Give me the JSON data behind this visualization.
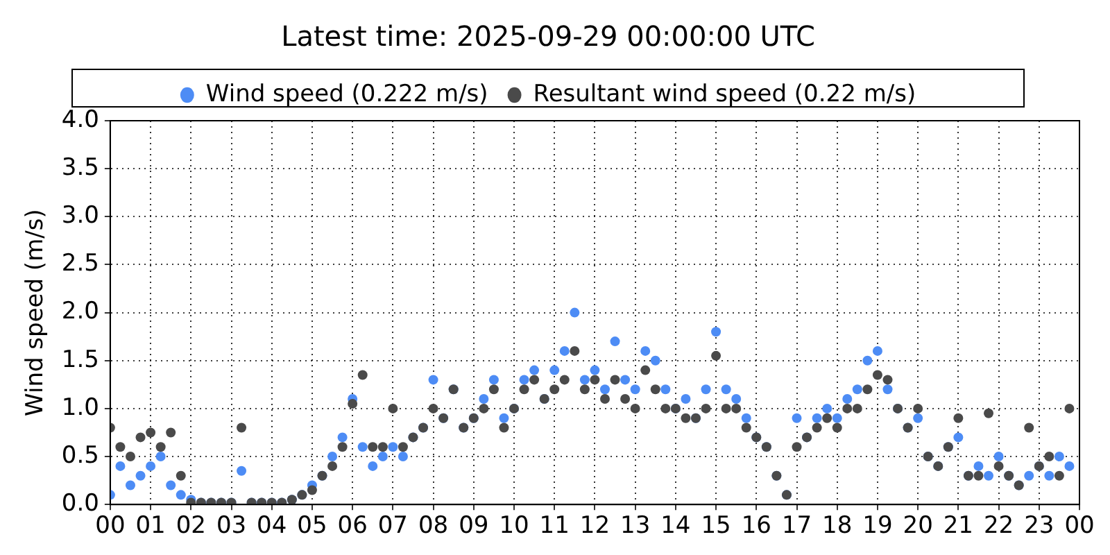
{
  "chart_data": {
    "type": "scatter",
    "title": "Latest time: 2025-09-29 00:00:00 UTC",
    "ylabel": "Wind speed (m/s)",
    "x": [
      0,
      0.25,
      0.5,
      0.75,
      1,
      1.25,
      1.5,
      1.75,
      2,
      2.25,
      2.5,
      2.75,
      3,
      3.25,
      3.5,
      3.75,
      4,
      4.25,
      4.5,
      4.75,
      5,
      5.25,
      5.5,
      5.75,
      6,
      6.25,
      6.5,
      6.75,
      7,
      7.25,
      7.5,
      7.75,
      8,
      8.25,
      8.5,
      8.75,
      9,
      9.25,
      9.5,
      9.75,
      10,
      10.25,
      10.5,
      10.75,
      11,
      11.25,
      11.5,
      11.75,
      12,
      12.25,
      12.5,
      12.75,
      13,
      13.25,
      13.5,
      13.75,
      14,
      14.25,
      14.5,
      14.75,
      15,
      15.25,
      15.5,
      15.75,
      16,
      16.25,
      16.5,
      16.75,
      17,
      17.25,
      17.5,
      17.75,
      18,
      18.25,
      18.5,
      18.75,
      19,
      19.25,
      19.5,
      19.75,
      20,
      20.25,
      20.5,
      20.75,
      21,
      21.25,
      21.5,
      21.75,
      22,
      22.25,
      22.5,
      22.75,
      23,
      23.25,
      23.5,
      23.75
    ],
    "series": [
      {
        "name": "Wind speed (0.222 m/s)",
        "color": "#4d8cf5",
        "values": [
          0.1,
          0.4,
          0.2,
          0.3,
          0.4,
          0.5,
          0.2,
          0.1,
          0.05,
          0.02,
          0.02,
          0.02,
          0.02,
          0.35,
          0.02,
          0.02,
          0.02,
          0.02,
          0.05,
          0.1,
          0.2,
          0.3,
          0.5,
          0.7,
          1.1,
          0.6,
          0.4,
          0.5,
          0.6,
          0.5,
          0.7,
          0.8,
          1.3,
          0.9,
          1.2,
          0.8,
          0.9,
          1.1,
          1.3,
          0.9,
          1.0,
          1.3,
          1.4,
          1.1,
          1.4,
          1.6,
          2.0,
          1.3,
          1.4,
          1.2,
          1.7,
          1.3,
          1.2,
          1.6,
          1.5,
          1.2,
          1.0,
          1.1,
          0.9,
          1.2,
          1.8,
          1.2,
          1.1,
          0.9,
          0.7,
          0.6,
          0.3,
          0.1,
          0.9,
          0.7,
          0.9,
          1.0,
          0.9,
          1.1,
          1.2,
          1.5,
          1.6,
          1.2,
          1.0,
          0.8,
          0.9,
          0.5,
          0.4,
          0.6,
          0.7,
          0.3,
          0.4,
          0.3,
          0.5,
          0.3,
          0.2,
          0.3,
          0.4,
          0.3,
          0.5,
          0.4
        ]
      },
      {
        "name": "Resultant wind speed (0.22 m/s)",
        "color": "#4a4a4a",
        "values": [
          0.8,
          0.6,
          0.5,
          0.7,
          0.75,
          0.6,
          0.75,
          0.3,
          0.02,
          0.02,
          0.02,
          0.02,
          0.02,
          0.8,
          0.02,
          0.02,
          0.02,
          0.02,
          0.05,
          0.1,
          0.15,
          0.3,
          0.4,
          0.6,
          1.05,
          1.35,
          0.6,
          0.6,
          1.0,
          0.6,
          0.7,
          0.8,
          1.0,
          0.9,
          1.2,
          0.8,
          0.9,
          1.0,
          1.2,
          0.8,
          1.0,
          1.2,
          1.3,
          1.1,
          1.2,
          1.3,
          1.6,
          1.2,
          1.3,
          1.1,
          1.3,
          1.1,
          1.0,
          1.4,
          1.2,
          1.0,
          1.0,
          0.9,
          0.9,
          1.0,
          1.55,
          1.0,
          1.0,
          0.8,
          0.7,
          0.6,
          0.3,
          0.1,
          0.6,
          0.7,
          0.8,
          0.9,
          0.8,
          1.0,
          1.0,
          1.2,
          1.35,
          1.3,
          1.0,
          0.8,
          1.0,
          0.5,
          0.4,
          0.6,
          0.9,
          0.3,
          0.3,
          0.95,
          0.4,
          0.3,
          0.2,
          0.8,
          0.4,
          0.5,
          0.3,
          1.0
        ]
      }
    ],
    "xlim": [
      0,
      24
    ],
    "xticks": [
      {
        "value": 0,
        "label": "00"
      },
      {
        "value": 1,
        "label": "01"
      },
      {
        "value": 2,
        "label": "02"
      },
      {
        "value": 3,
        "label": "03"
      },
      {
        "value": 4,
        "label": "04"
      },
      {
        "value": 5,
        "label": "05"
      },
      {
        "value": 6,
        "label": "06"
      },
      {
        "value": 7,
        "label": "07"
      },
      {
        "value": 8,
        "label": "08"
      },
      {
        "value": 9,
        "label": "09"
      },
      {
        "value": 10,
        "label": "10"
      },
      {
        "value": 11,
        "label": "11"
      },
      {
        "value": 12,
        "label": "12"
      },
      {
        "value": 13,
        "label": "13"
      },
      {
        "value": 14,
        "label": "14"
      },
      {
        "value": 15,
        "label": "15"
      },
      {
        "value": 16,
        "label": "16"
      },
      {
        "value": 17,
        "label": "17"
      },
      {
        "value": 18,
        "label": "18"
      },
      {
        "value": 19,
        "label": "19"
      },
      {
        "value": 20,
        "label": "20"
      },
      {
        "value": 21,
        "label": "21"
      },
      {
        "value": 22,
        "label": "22"
      },
      {
        "value": 23,
        "label": "23"
      },
      {
        "value": 24,
        "label": "00"
      }
    ],
    "ylim": [
      0,
      4
    ],
    "yticks": [
      {
        "value": 0,
        "label": "0.0"
      },
      {
        "value": 0.5,
        "label": "0.5"
      },
      {
        "value": 1,
        "label": "1.0"
      },
      {
        "value": 1.5,
        "label": "1.5"
      },
      {
        "value": 2,
        "label": "2.0"
      },
      {
        "value": 2.5,
        "label": "2.5"
      },
      {
        "value": 3,
        "label": "3.0"
      },
      {
        "value": 3.5,
        "label": "3.5"
      },
      {
        "value": 4,
        "label": "4.0"
      }
    ],
    "grid": true,
    "legend": "top",
    "marker": "circle"
  }
}
